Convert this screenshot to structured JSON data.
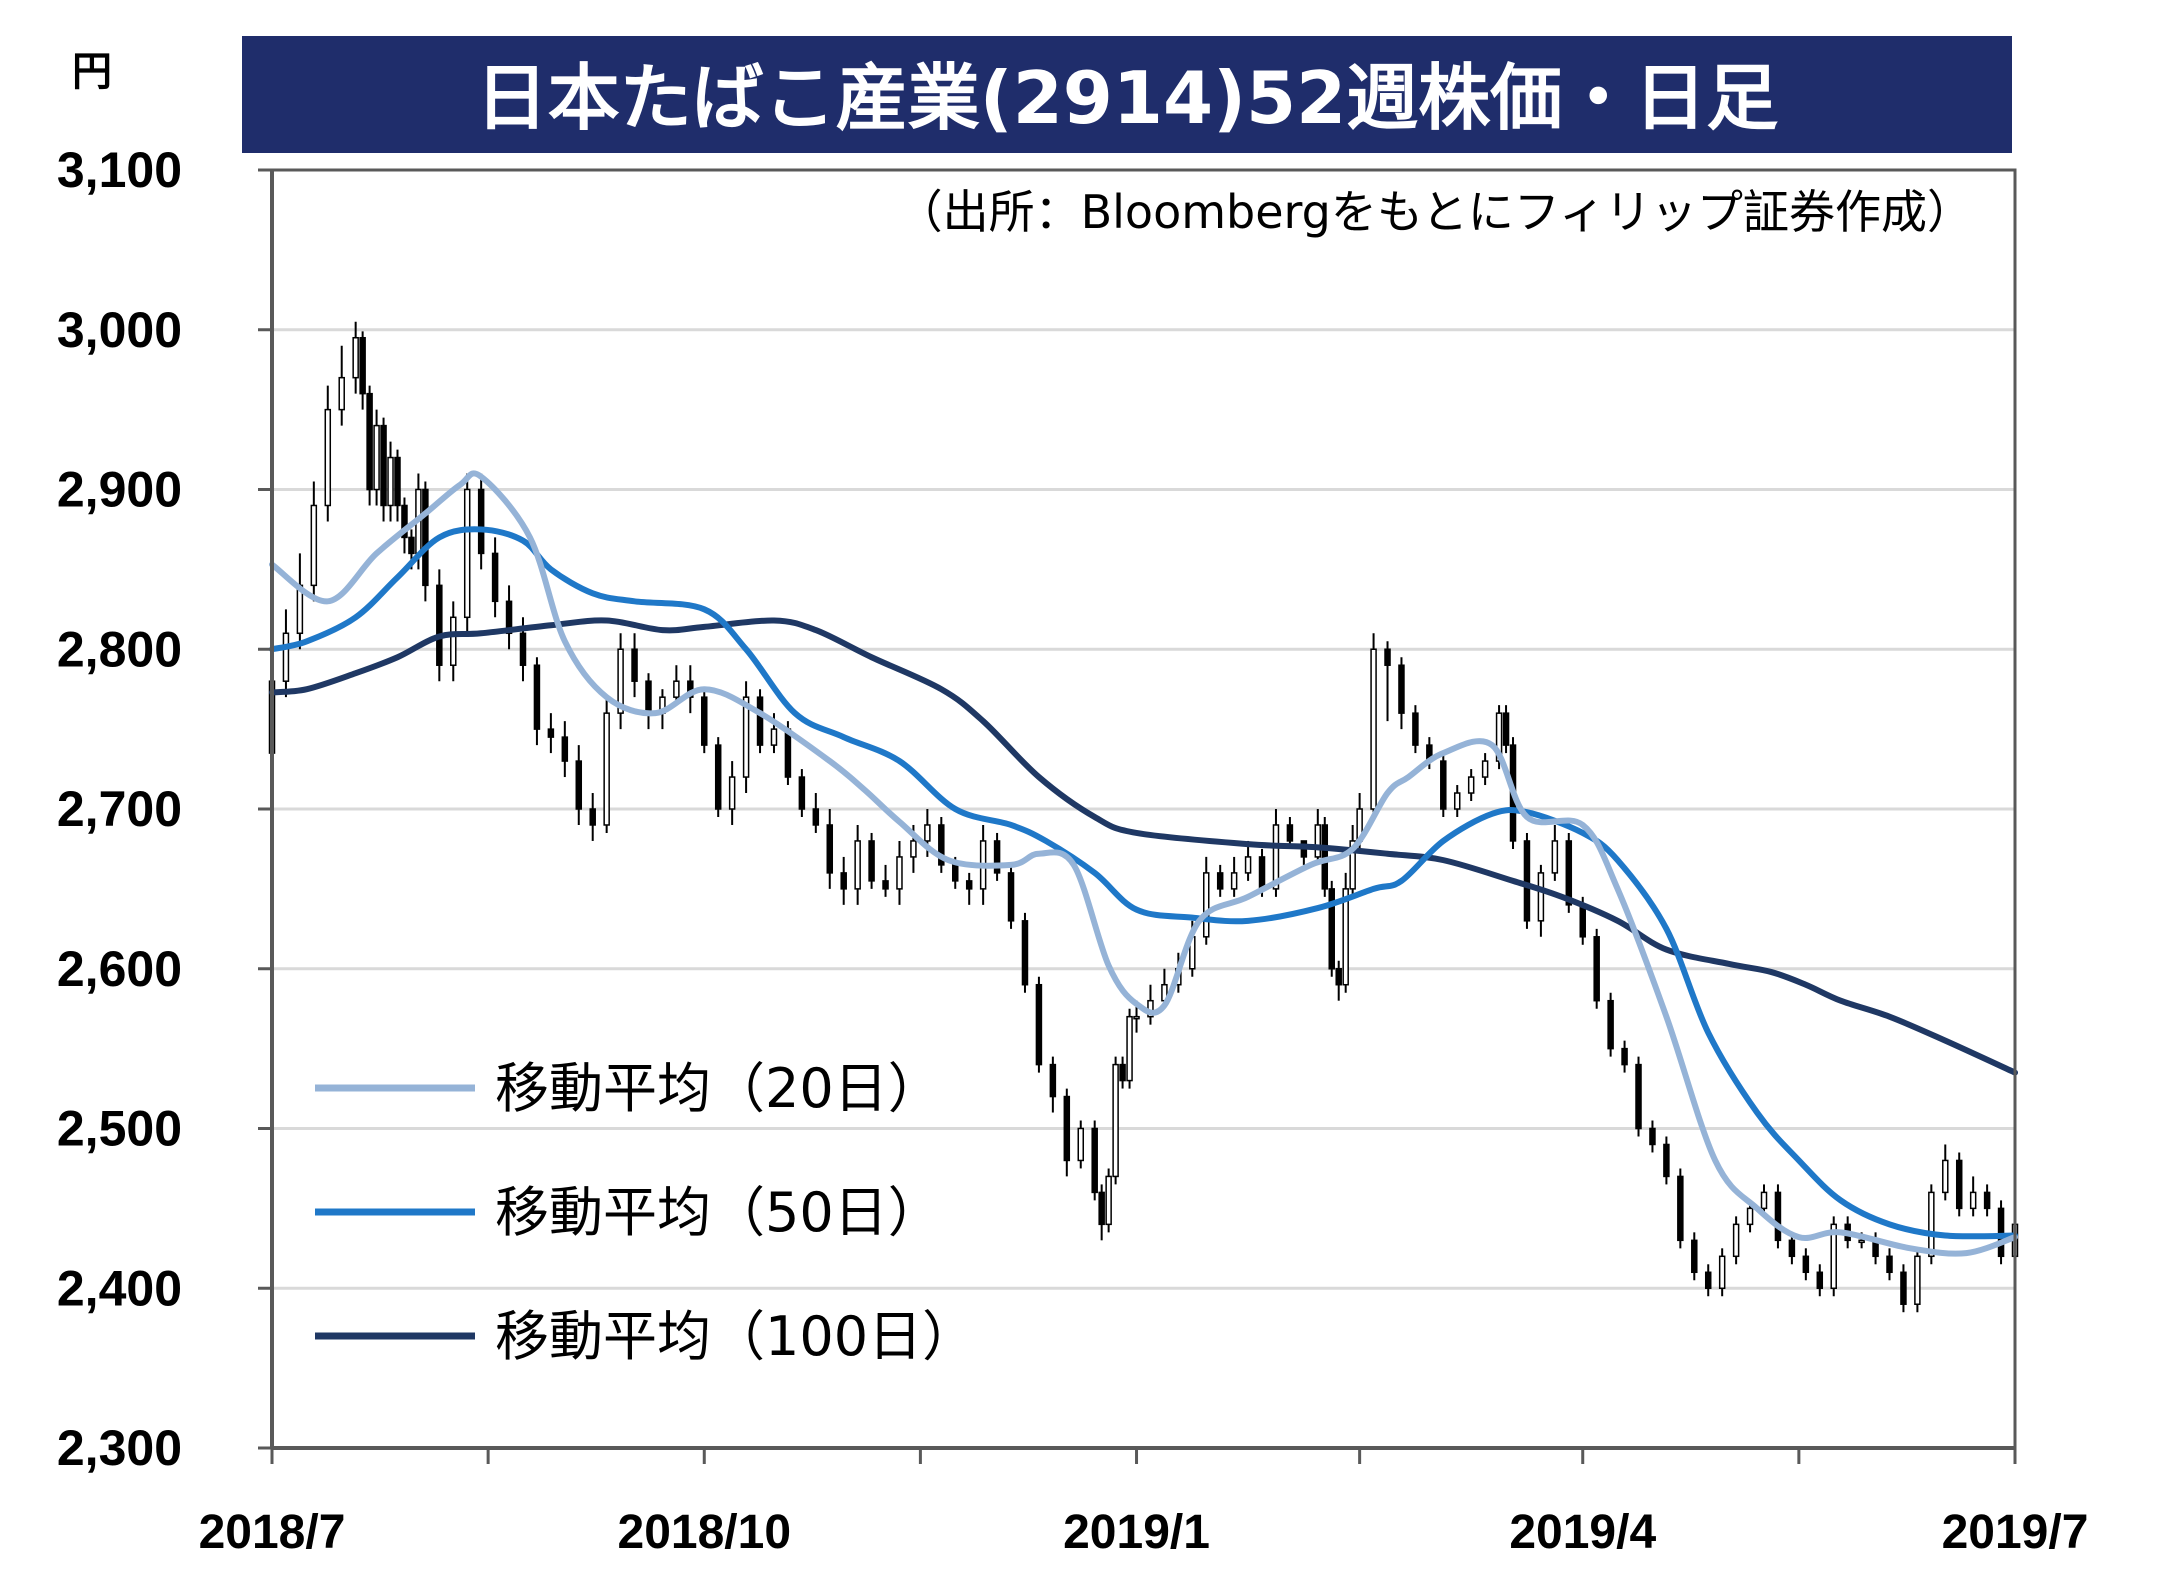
{
  "chart_data": {
    "type": "line",
    "title": "日本たばこ産業(2914)52週株価・日足",
    "source": "（出所：Bloombergをもとにフィリップ証券作成）",
    "ylabel": "円",
    "xlabel": "",
    "ylim": [
      2300,
      3100
    ],
    "yticks": [
      2300,
      2400,
      2500,
      2600,
      2700,
      2800,
      2900,
      3000,
      3100
    ],
    "ytick_labels": [
      "2,300",
      "2,400",
      "2,500",
      "2,600",
      "2,700",
      "2,800",
      "2,900",
      "3,000",
      "3,100"
    ],
    "xlim": [
      0,
      250
    ],
    "xticks": [
      0,
      62,
      124,
      188,
      250
    ],
    "xtick_labels": [
      "2018/7",
      "2018/10",
      "2019/1",
      "2019/4",
      "2019/7"
    ],
    "minor_xticks": [
      31,
      93,
      156,
      219
    ],
    "grid": true,
    "legend": "bottom-left",
    "colors": {
      "title_bg": "#1f2d6b",
      "candle": "#000000",
      "ma20": "#95b3d7",
      "ma50": "#1f78c8",
      "ma100": "#1f3864",
      "grid": "#d9d9d9",
      "axis": "#595959"
    },
    "series": [
      {
        "name": "移動平均（20日）",
        "key": "ma20",
        "x": [
          0,
          8,
          15,
          22,
          27,
          30,
          37,
          42,
          48,
          55,
          62,
          70,
          80,
          85,
          90,
          97,
          106,
          110,
          115,
          120,
          124,
          128,
          133,
          140,
          149,
          155,
          160,
          163,
          168,
          175,
          180,
          188,
          193,
          200,
          207,
          213,
          219,
          225,
          235,
          243,
          250
        ],
        "y": [
          2853,
          2830,
          2860,
          2885,
          2903,
          2908,
          2870,
          2805,
          2770,
          2760,
          2775,
          2760,
          2730,
          2712,
          2692,
          2668,
          2665,
          2672,
          2665,
          2602,
          2578,
          2577,
          2630,
          2645,
          2665,
          2675,
          2710,
          2720,
          2735,
          2740,
          2695,
          2690,
          2650,
          2570,
          2480,
          2450,
          2432,
          2435,
          2425,
          2422,
          2432
        ]
      },
      {
        "name": "移動平均（50日）",
        "key": "ma50",
        "x": [
          0,
          5,
          12,
          18,
          24,
          30,
          36,
          40,
          46,
          52,
          62,
          68,
          75,
          82,
          90,
          98,
          106,
          111,
          118,
          124,
          132,
          140,
          150,
          158,
          162,
          168,
          175,
          180,
          188,
          193,
          200,
          206,
          213,
          219,
          225,
          232,
          240,
          250
        ],
        "y": [
          2800,
          2805,
          2820,
          2845,
          2870,
          2875,
          2868,
          2850,
          2835,
          2830,
          2825,
          2800,
          2760,
          2745,
          2730,
          2700,
          2690,
          2680,
          2660,
          2637,
          2632,
          2630,
          2638,
          2650,
          2655,
          2680,
          2697,
          2698,
          2685,
          2668,
          2625,
          2560,
          2510,
          2480,
          2455,
          2440,
          2433,
          2433
        ]
      },
      {
        "name": "移動平均（100日）",
        "key": "ma100",
        "x": [
          0,
          5,
          12,
          18,
          24,
          30,
          40,
          48,
          56,
          62,
          72,
          78,
          86,
          96,
          102,
          110,
          118,
          124,
          140,
          150,
          160,
          168,
          178,
          185,
          193,
          200,
          209,
          215,
          220,
          225,
          232,
          240,
          250
        ],
        "y": [
          2773,
          2775,
          2785,
          2795,
          2808,
          2810,
          2815,
          2818,
          2812,
          2814,
          2818,
          2812,
          2795,
          2775,
          2755,
          2720,
          2695,
          2685,
          2678,
          2676,
          2672,
          2668,
          2655,
          2645,
          2630,
          2612,
          2603,
          2598,
          2590,
          2580,
          2570,
          2555,
          2535
        ]
      }
    ],
    "candles": {
      "x": [
        0,
        2,
        4,
        6,
        8,
        10,
        12,
        13,
        14,
        15,
        16,
        17,
        18,
        19,
        20,
        21,
        22,
        24,
        26,
        28,
        30,
        32,
        34,
        36,
        38,
        40,
        42,
        44,
        46,
        48,
        50,
        52,
        54,
        56,
        58,
        60,
        62,
        64,
        66,
        68,
        70,
        72,
        74,
        76,
        78,
        80,
        82,
        84,
        86,
        88,
        90,
        92,
        94,
        96,
        98,
        100,
        102,
        104,
        106,
        108,
        110,
        112,
        114,
        116,
        118,
        119,
        120,
        121,
        122,
        123,
        124,
        126,
        128,
        130,
        132,
        134,
        136,
        138,
        140,
        142,
        144,
        146,
        148,
        150,
        151,
        152,
        153,
        154,
        155,
        156,
        158,
        160,
        162,
        164,
        166,
        168,
        170,
        172,
        174,
        176,
        177,
        178,
        180,
        182,
        184,
        186,
        188,
        190,
        192,
        194,
        196,
        198,
        200,
        202,
        204,
        206,
        208,
        210,
        212,
        214,
        216,
        218,
        220,
        222,
        224,
        226,
        228,
        230,
        232,
        234,
        236,
        238,
        240,
        242,
        244,
        246,
        248,
        250
      ],
      "open": [
        2735,
        2780,
        2810,
        2840,
        2890,
        2950,
        2970,
        2995,
        2960,
        2900,
        2940,
        2890,
        2920,
        2890,
        2870,
        2860,
        2900,
        2840,
        2790,
        2820,
        2900,
        2860,
        2830,
        2810,
        2790,
        2750,
        2745,
        2730,
        2700,
        2690,
        2760,
        2800,
        2780,
        2760,
        2770,
        2780,
        2770,
        2740,
        2700,
        2720,
        2770,
        2740,
        2750,
        2720,
        2700,
        2690,
        2660,
        2650,
        2680,
        2655,
        2650,
        2670,
        2680,
        2690,
        2665,
        2655,
        2650,
        2680,
        2660,
        2630,
        2590,
        2540,
        2520,
        2480,
        2500,
        2460,
        2440,
        2470,
        2540,
        2530,
        2570,
        2570,
        2580,
        2590,
        2600,
        2620,
        2660,
        2650,
        2660,
        2670,
        2650,
        2690,
        2680,
        2670,
        2690,
        2650,
        2600,
        2590,
        2650,
        2680,
        2700,
        2800,
        2790,
        2760,
        2740,
        2730,
        2700,
        2710,
        2720,
        2730,
        2760,
        2740,
        2680,
        2630,
        2660,
        2680,
        2640,
        2620,
        2580,
        2550,
        2540,
        2500,
        2490,
        2470,
        2430,
        2410,
        2400,
        2420,
        2440,
        2450,
        2460,
        2430,
        2420,
        2410,
        2400,
        2440,
        2430,
        2430,
        2420,
        2410,
        2390,
        2420,
        2460,
        2480,
        2450,
        2460,
        2450,
        2420
      ],
      "close": [
        2780,
        2810,
        2840,
        2890,
        2950,
        2970,
        2995,
        2960,
        2900,
        2940,
        2890,
        2920,
        2890,
        2870,
        2860,
        2900,
        2840,
        2790,
        2820,
        2900,
        2860,
        2830,
        2810,
        2790,
        2750,
        2745,
        2730,
        2700,
        2690,
        2760,
        2800,
        2780,
        2760,
        2770,
        2780,
        2770,
        2740,
        2700,
        2720,
        2770,
        2740,
        2750,
        2720,
        2700,
        2690,
        2660,
        2650,
        2680,
        2655,
        2650,
        2670,
        2680,
        2690,
        2665,
        2655,
        2650,
        2680,
        2660,
        2630,
        2590,
        2540,
        2520,
        2480,
        2500,
        2460,
        2440,
        2470,
        2540,
        2530,
        2570,
        2570,
        2580,
        2590,
        2600,
        2620,
        2660,
        2650,
        2660,
        2670,
        2650,
        2690,
        2680,
        2670,
        2690,
        2650,
        2600,
        2590,
        2650,
        2680,
        2700,
        2800,
        2790,
        2760,
        2740,
        2730,
        2700,
        2710,
        2720,
        2730,
        2760,
        2740,
        2680,
        2630,
        2660,
        2680,
        2640,
        2620,
        2580,
        2550,
        2540,
        2500,
        2490,
        2470,
        2430,
        2410,
        2400,
        2420,
        2440,
        2450,
        2460,
        2430,
        2420,
        2410,
        2400,
        2440,
        2430,
        2430,
        2420,
        2410,
        2390,
        2420,
        2460,
        2480,
        2450,
        2460,
        2450,
        2420,
        2440
      ],
      "high": [
        2795,
        2825,
        2860,
        2905,
        2965,
        2990,
        3005,
        2999,
        2965,
        2950,
        2945,
        2930,
        2925,
        2895,
        2875,
        2910,
        2905,
        2850,
        2830,
        2910,
        2910,
        2870,
        2840,
        2820,
        2795,
        2760,
        2755,
        2740,
        2710,
        2770,
        2810,
        2810,
        2785,
        2775,
        2790,
        2790,
        2775,
        2745,
        2730,
        2780,
        2775,
        2760,
        2755,
        2725,
        2710,
        2700,
        2670,
        2690,
        2685,
        2665,
        2680,
        2690,
        2700,
        2695,
        2670,
        2660,
        2690,
        2685,
        2665,
        2635,
        2595,
        2545,
        2525,
        2505,
        2505,
        2465,
        2475,
        2545,
        2545,
        2575,
        2580,
        2590,
        2600,
        2610,
        2630,
        2670,
        2665,
        2670,
        2680,
        2675,
        2700,
        2695,
        2680,
        2700,
        2695,
        2655,
        2605,
        2660,
        2690,
        2710,
        2810,
        2805,
        2795,
        2765,
        2745,
        2735,
        2715,
        2725,
        2735,
        2765,
        2765,
        2745,
        2685,
        2665,
        2690,
        2685,
        2645,
        2625,
        2585,
        2555,
        2545,
        2505,
        2495,
        2475,
        2435,
        2415,
        2425,
        2445,
        2455,
        2465,
        2465,
        2435,
        2425,
        2415,
        2445,
        2445,
        2435,
        2435,
        2425,
        2415,
        2425,
        2465,
        2490,
        2485,
        2470,
        2465,
        2455,
        2450
      ],
      "low": [
        2725,
        2770,
        2800,
        2830,
        2880,
        2940,
        2960,
        2950,
        2890,
        2890,
        2880,
        2880,
        2880,
        2860,
        2850,
        2850,
        2830,
        2780,
        2780,
        2810,
        2850,
        2820,
        2800,
        2780,
        2740,
        2735,
        2720,
        2690,
        2680,
        2685,
        2750,
        2770,
        2750,
        2750,
        2765,
        2760,
        2735,
        2695,
        2690,
        2710,
        2735,
        2735,
        2715,
        2695,
        2685,
        2650,
        2640,
        2640,
        2650,
        2645,
        2640,
        2660,
        2670,
        2660,
        2650,
        2640,
        2640,
        2655,
        2625,
        2585,
        2535,
        2510,
        2470,
        2475,
        2455,
        2430,
        2435,
        2465,
        2525,
        2525,
        2560,
        2565,
        2575,
        2585,
        2595,
        2615,
        2645,
        2645,
        2655,
        2645,
        2645,
        2675,
        2665,
        2665,
        2645,
        2595,
        2580,
        2585,
        2645,
        2675,
        2695,
        2755,
        2750,
        2735,
        2725,
        2695,
        2695,
        2705,
        2715,
        2725,
        2735,
        2675,
        2625,
        2620,
        2655,
        2635,
        2615,
        2575,
        2545,
        2535,
        2495,
        2485,
        2465,
        2425,
        2405,
        2395,
        2395,
        2415,
        2435,
        2445,
        2425,
        2415,
        2405,
        2395,
        2395,
        2425,
        2425,
        2415,
        2405,
        2385,
        2385,
        2415,
        2455,
        2445,
        2445,
        2445,
        2415,
        2410
      ]
    }
  },
  "legend": {
    "ma20_label": "移動平均（20日）",
    "ma50_label": "移動平均（50日）",
    "ma100_label": "移動平均（100日）"
  }
}
